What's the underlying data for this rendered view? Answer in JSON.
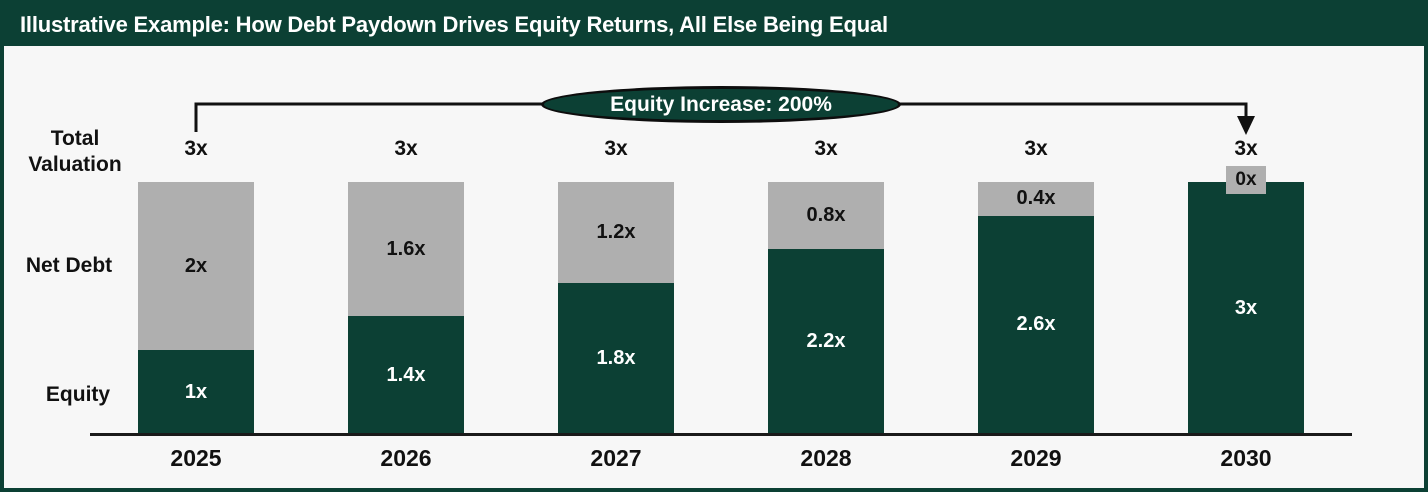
{
  "header": {
    "title": "Illustrative Example: How Debt Paydown Drives Equity Returns, All Else Being Equal"
  },
  "annotation": {
    "label": "Equity Increase: 200%"
  },
  "side_labels": {
    "total_line1": "Total",
    "total_line2": "Valuation",
    "net_debt": "Net Debt",
    "equity": "Equity"
  },
  "colors": {
    "equity_green": "#0C4034",
    "net_debt_gray": "#AFAFAF",
    "background": "#F7F7F7",
    "header_bg": "#0C4034",
    "arrow_black": "#111111"
  },
  "chart_data": {
    "type": "bar",
    "stacked": true,
    "title": "Illustrative Example: How Debt Paydown Drives Equity Returns, All Else Being Equal",
    "categories": [
      "2025",
      "2026",
      "2027",
      "2028",
      "2029",
      "2030"
    ],
    "series": [
      {
        "name": "Equity",
        "color": "#0C4034",
        "values": [
          1,
          1.4,
          1.8,
          2.2,
          2.6,
          3
        ],
        "labels": [
          "1x",
          "1.4x",
          "1.8x",
          "2.2x",
          "2.6x",
          "3x"
        ]
      },
      {
        "name": "Net Debt",
        "color": "#AFAFAF",
        "values": [
          2,
          1.6,
          1.2,
          0.8,
          0.4,
          0
        ],
        "labels": [
          "2x",
          "1.6x",
          "1.2x",
          "0.8x",
          "0.4x",
          "0x"
        ]
      }
    ],
    "totals": [
      "3x",
      "3x",
      "3x",
      "3x",
      "3x",
      "3x"
    ],
    "ylim": [
      0,
      3
    ],
    "annotation": "Equity Increase: 200%",
    "legend": "none",
    "grid": false
  }
}
